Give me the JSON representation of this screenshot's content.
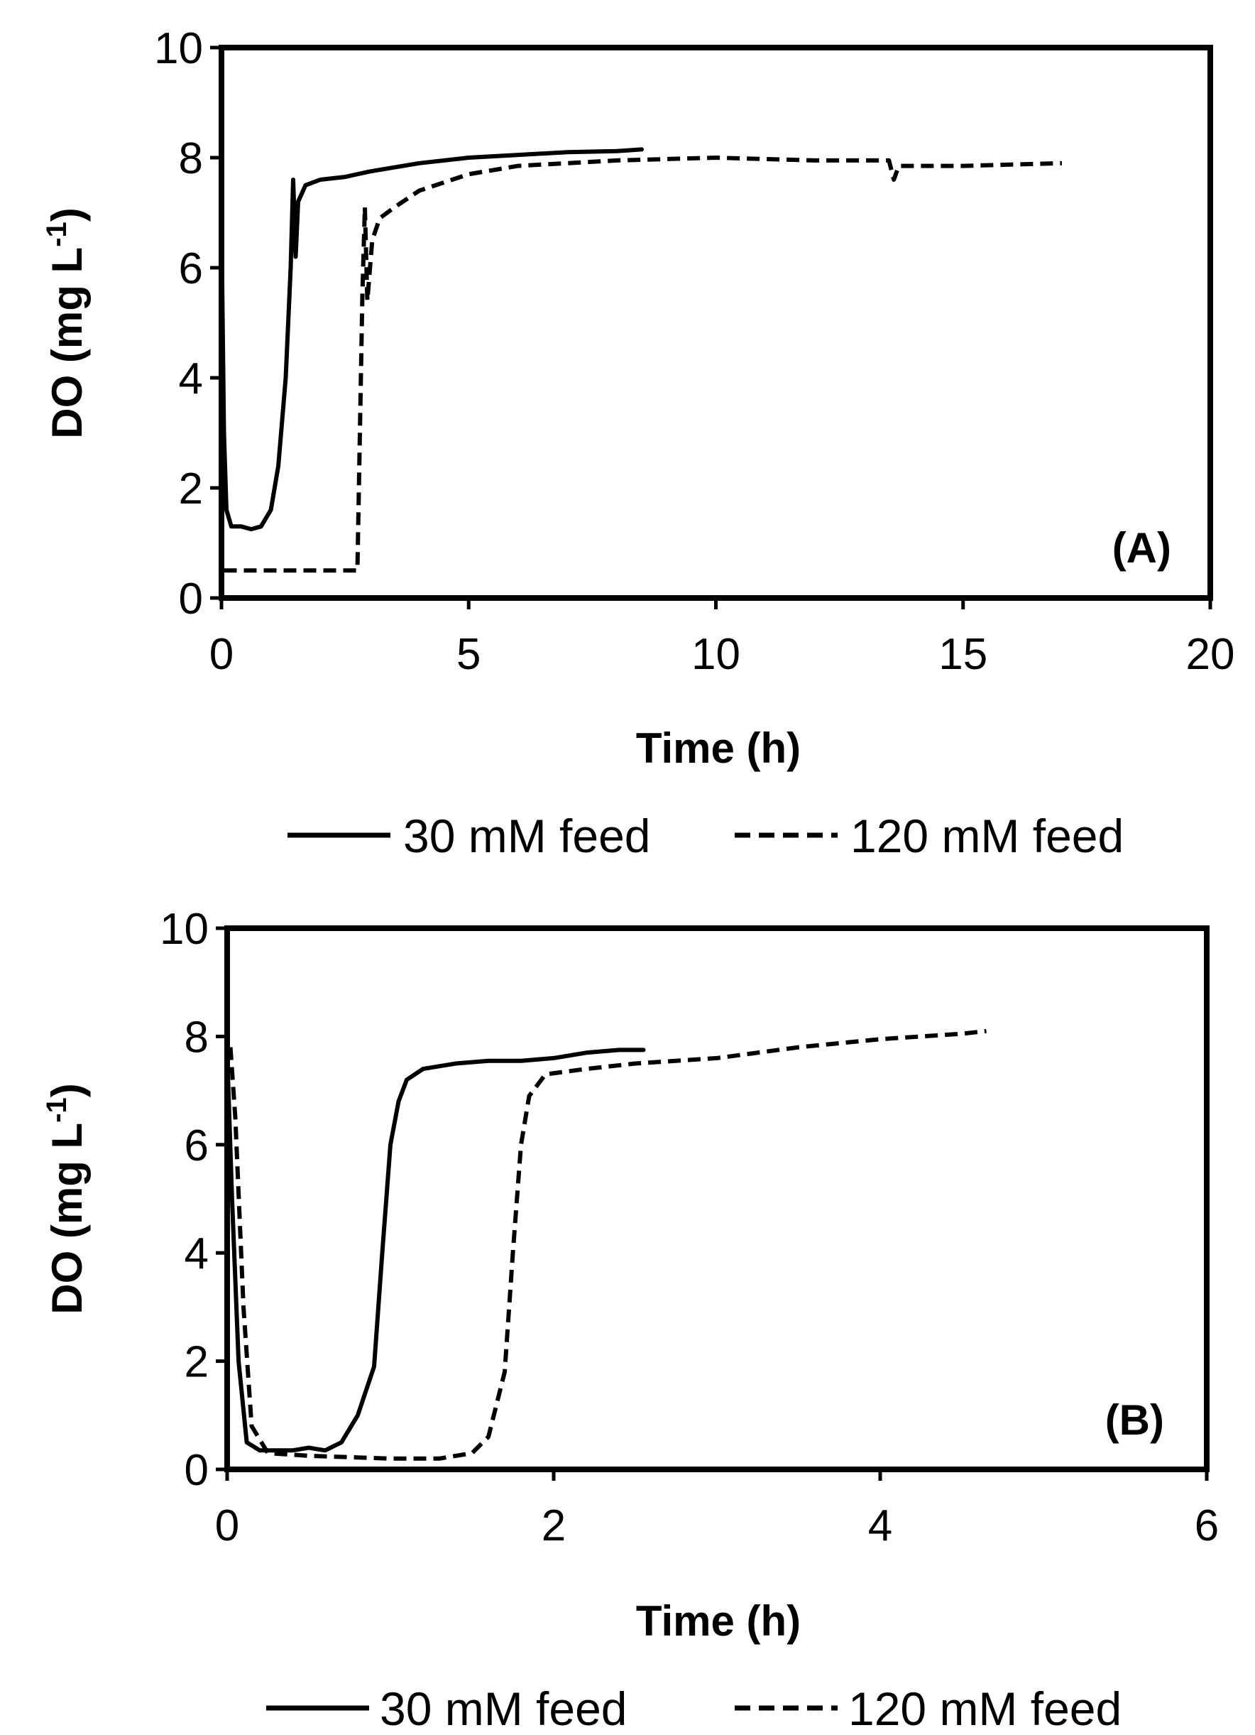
{
  "chart_data": [
    {
      "type": "line",
      "panel_label": "(A)",
      "xlabel": "Time (h)",
      "ylabel": {
        "main": "DO (mg L",
        "sup": "-1",
        "close": ")"
      },
      "xlim": [
        0,
        20
      ],
      "ylim": [
        0,
        10
      ],
      "xticks": [
        0,
        5,
        10,
        15,
        20
      ],
      "yticks": [
        0,
        2,
        4,
        6,
        8,
        10
      ],
      "grid": false,
      "legend": {
        "position": "bottom",
        "entries": [
          "30 mM feed",
          "120 mM feed"
        ]
      },
      "series": [
        {
          "name": "30 mM feed",
          "style": "solid",
          "points": [
            [
              0.0,
              6.8
            ],
            [
              0.05,
              3.0
            ],
            [
              0.1,
              1.6
            ],
            [
              0.2,
              1.3
            ],
            [
              0.4,
              1.3
            ],
            [
              0.6,
              1.25
            ],
            [
              0.8,
              1.3
            ],
            [
              1.0,
              1.6
            ],
            [
              1.15,
              2.4
            ],
            [
              1.3,
              4.0
            ],
            [
              1.4,
              6.0
            ],
            [
              1.45,
              7.6
            ],
            [
              1.5,
              6.2
            ],
            [
              1.55,
              7.2
            ],
            [
              1.7,
              7.5
            ],
            [
              2.0,
              7.6
            ],
            [
              2.5,
              7.65
            ],
            [
              3.0,
              7.75
            ],
            [
              4.0,
              7.9
            ],
            [
              5.0,
              8.0
            ],
            [
              6.0,
              8.05
            ],
            [
              7.0,
              8.1
            ],
            [
              8.0,
              8.12
            ],
            [
              8.5,
              8.15
            ]
          ]
        },
        {
          "name": "120 mM feed",
          "style": "dashed",
          "points": [
            [
              0.05,
              0.5
            ],
            [
              0.3,
              0.5
            ],
            [
              1.0,
              0.5
            ],
            [
              2.0,
              0.5
            ],
            [
              2.75,
              0.5
            ],
            [
              2.8,
              3.0
            ],
            [
              2.85,
              5.5
            ],
            [
              2.9,
              7.1
            ],
            [
              2.95,
              5.4
            ],
            [
              3.05,
              6.5
            ],
            [
              3.2,
              6.9
            ],
            [
              3.5,
              7.1
            ],
            [
              4.0,
              7.4
            ],
            [
              5.0,
              7.7
            ],
            [
              6.0,
              7.85
            ],
            [
              8.0,
              7.95
            ],
            [
              10.0,
              8.0
            ],
            [
              12.0,
              7.95
            ],
            [
              13.5,
              7.95
            ],
            [
              13.6,
              7.6
            ],
            [
              13.7,
              7.85
            ],
            [
              15.0,
              7.85
            ],
            [
              17.0,
              7.9
            ]
          ]
        }
      ]
    },
    {
      "type": "line",
      "panel_label": "(B)",
      "xlabel": "Time (h)",
      "ylabel": {
        "main": "DO (mg L",
        "sup": "-1",
        "close": ")"
      },
      "xlim": [
        0,
        6
      ],
      "ylim": [
        0,
        10
      ],
      "xticks": [
        0,
        2,
        4,
        6
      ],
      "yticks": [
        0,
        2,
        4,
        6,
        8,
        10
      ],
      "grid": false,
      "legend": {
        "position": "bottom",
        "entries": [
          "30 mM feed",
          "120 mM feed"
        ]
      },
      "series": [
        {
          "name": "30 mM feed",
          "style": "solid",
          "points": [
            [
              0.0,
              7.7
            ],
            [
              0.03,
              5.0
            ],
            [
              0.07,
              2.0
            ],
            [
              0.12,
              0.5
            ],
            [
              0.2,
              0.35
            ],
            [
              0.4,
              0.35
            ],
            [
              0.5,
              0.4
            ],
            [
              0.6,
              0.35
            ],
            [
              0.7,
              0.5
            ],
            [
              0.8,
              1.0
            ],
            [
              0.9,
              1.9
            ],
            [
              0.95,
              4.0
            ],
            [
              1.0,
              6.0
            ],
            [
              1.05,
              6.8
            ],
            [
              1.1,
              7.2
            ],
            [
              1.2,
              7.4
            ],
            [
              1.4,
              7.5
            ],
            [
              1.6,
              7.55
            ],
            [
              1.8,
              7.55
            ],
            [
              2.0,
              7.6
            ],
            [
              2.2,
              7.7
            ],
            [
              2.4,
              7.75
            ],
            [
              2.55,
              7.75
            ]
          ]
        },
        {
          "name": "120 mM feed",
          "style": "dashed",
          "points": [
            [
              0.02,
              7.8
            ],
            [
              0.05,
              6.5
            ],
            [
              0.1,
              3.0
            ],
            [
              0.15,
              0.8
            ],
            [
              0.25,
              0.3
            ],
            [
              0.5,
              0.25
            ],
            [
              0.8,
              0.22
            ],
            [
              1.0,
              0.2
            ],
            [
              1.3,
              0.2
            ],
            [
              1.5,
              0.3
            ],
            [
              1.6,
              0.6
            ],
            [
              1.7,
              1.8
            ],
            [
              1.75,
              4.0
            ],
            [
              1.8,
              6.0
            ],
            [
              1.85,
              6.9
            ],
            [
              1.95,
              7.3
            ],
            [
              2.2,
              7.4
            ],
            [
              2.5,
              7.5
            ],
            [
              3.0,
              7.6
            ],
            [
              3.5,
              7.8
            ],
            [
              4.0,
              7.95
            ],
            [
              4.5,
              8.05
            ],
            [
              4.65,
              8.1
            ]
          ]
        }
      ]
    }
  ]
}
